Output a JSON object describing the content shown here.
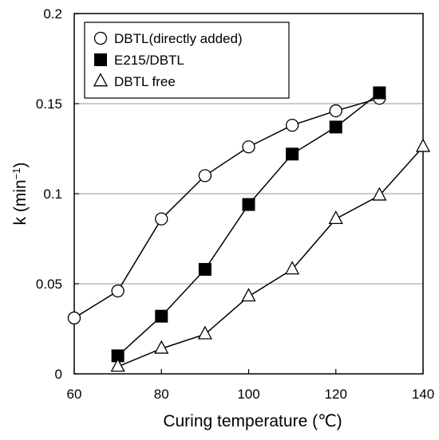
{
  "chart_data": {
    "type": "line",
    "title": "",
    "xlabel": "Curing temperature (℃)",
    "ylabel": "k (min",
    "ylabel_sup": "−1",
    "ylabel_close": ")",
    "xlim": [
      60,
      140
    ],
    "ylim": [
      0,
      0.2
    ],
    "xticks": [
      60,
      80,
      100,
      120,
      140
    ],
    "xtick_labels": [
      "60",
      "80",
      "100",
      "120",
      "140"
    ],
    "yticks": [
      0,
      0.05,
      0.1,
      0.15,
      0.2
    ],
    "ytick_labels": [
      "0",
      "0.05",
      "0.1",
      "0.15",
      "0.2"
    ],
    "grid": "horizontal",
    "legend_position": "top-left",
    "series": [
      {
        "name": "DBTL(directly added)",
        "marker": "open-circle",
        "x": [
          60,
          70,
          80,
          90,
          100,
          110,
          120,
          130
        ],
        "y": [
          0.031,
          0.046,
          0.086,
          0.11,
          0.126,
          0.138,
          0.146,
          0.153
        ]
      },
      {
        "name": "E215/DBTL",
        "marker": "filled-square",
        "x": [
          70,
          80,
          90,
          100,
          110,
          120,
          130
        ],
        "y": [
          0.01,
          0.032,
          0.058,
          0.094,
          0.122,
          0.137,
          0.156
        ]
      },
      {
        "name": "DBTL free",
        "marker": "open-triangle",
        "x": [
          70,
          80,
          90,
          100,
          110,
          120,
          130,
          140
        ],
        "y": [
          0.004,
          0.014,
          0.022,
          0.043,
          0.058,
          0.086,
          0.099,
          0.126
        ]
      }
    ]
  }
}
